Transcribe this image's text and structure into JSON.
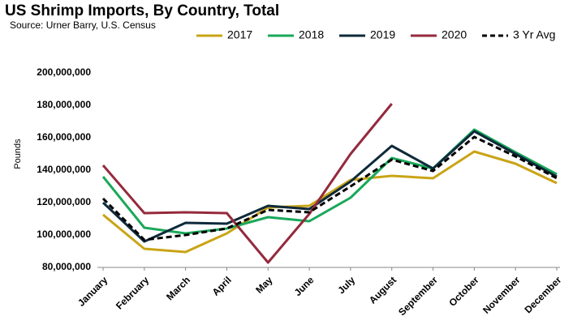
{
  "chart_data": {
    "type": "line",
    "title": "US Shrimp Imports, By Country, Total",
    "subtitle": "Source: Urner Barry, U.S. Census",
    "y_label": "Pounds",
    "legend": "top",
    "categories": [
      "January",
      "February",
      "March",
      "April",
      "May",
      "June",
      "July",
      "August",
      "September",
      "October",
      "November",
      "December"
    ],
    "ylim": [
      80000000,
      200000000
    ],
    "yticks": [
      {
        "value": 80000000,
        "label": "80,000,000"
      },
      {
        "value": 100000000,
        "label": "100,000,000"
      },
      {
        "value": 120000000,
        "label": "120,000,000"
      },
      {
        "value": 140000000,
        "label": "140,000,000"
      },
      {
        "value": 160000000,
        "label": "160,000,000"
      },
      {
        "value": 180000000,
        "label": "180,000,000"
      },
      {
        "value": 200000000,
        "label": "200,000,000"
      }
    ],
    "series": [
      {
        "name": "2017",
        "color": "#c9a416",
        "dashed": false,
        "values": [
          112500000,
          91500000,
          89500000,
          101000000,
          117000000,
          118000000,
          134000000,
          136500000,
          135000000,
          151500000,
          144000000,
          132000000
        ]
      },
      {
        "name": "2018",
        "color": "#1aa85a",
        "dashed": false,
        "values": [
          136000000,
          104500000,
          101000000,
          104000000,
          111000000,
          108500000,
          123000000,
          147500000,
          141000000,
          165000000,
          151000000,
          137500000
        ]
      },
      {
        "name": "2019",
        "color": "#0e2a3a",
        "dashed": false,
        "values": [
          120000000,
          96000000,
          107500000,
          107000000,
          118000000,
          116000000,
          133000000,
          155000000,
          141000000,
          164000000,
          150000000,
          136000000
        ]
      },
      {
        "name": "2020",
        "color": "#952a3c",
        "dashed": false,
        "values": [
          143000000,
          113500000,
          114000000,
          113500000,
          83000000,
          113000000,
          150000000,
          181000000,
          null,
          null,
          null,
          null
        ]
      },
      {
        "name": "3 Yr Avg",
        "color": "#000000",
        "dashed": true,
        "values": [
          122500000,
          97000000,
          100000000,
          104000000,
          115500000,
          114000000,
          130000000,
          146500000,
          139500000,
          160500000,
          148500000,
          135000000
        ]
      }
    ]
  }
}
